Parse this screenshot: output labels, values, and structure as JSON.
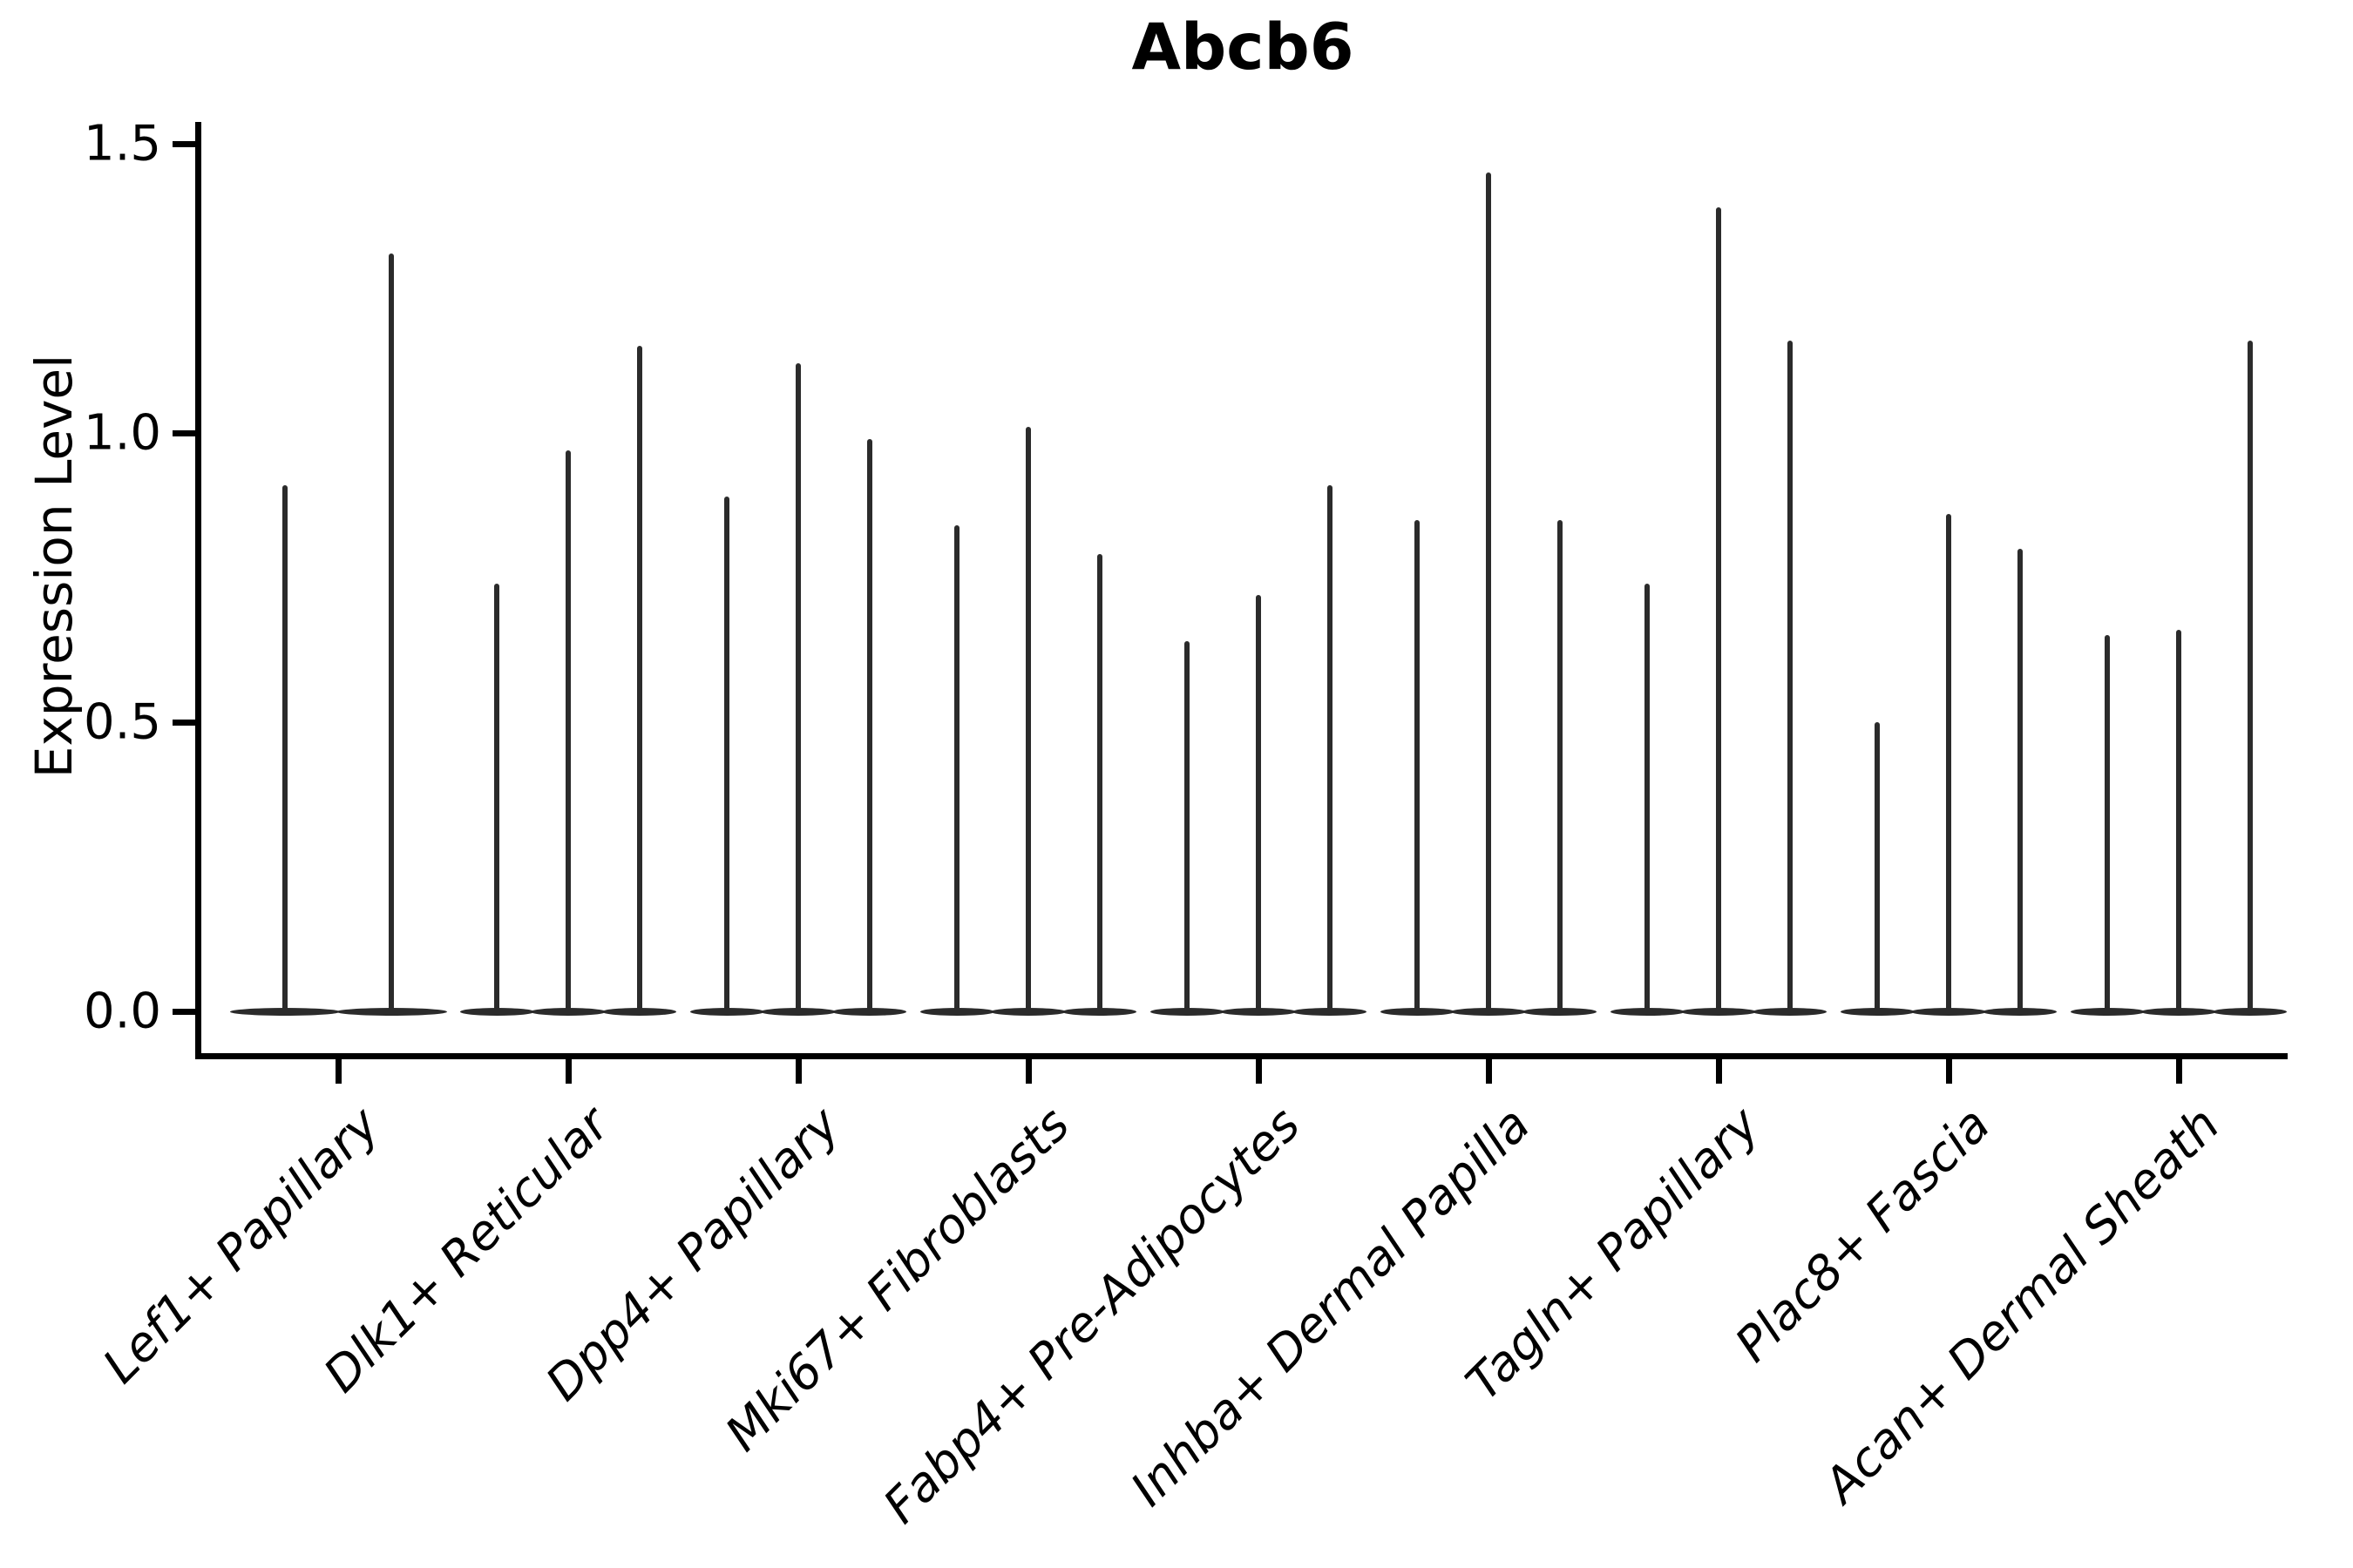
{
  "title": "Abcb6",
  "axes": {
    "ylabel": "Expression Level",
    "ytick_labels": [
      "0.0",
      "0.5",
      "1.0",
      "1.5"
    ]
  },
  "chart_data": {
    "type": "violin",
    "title": "Abcb6",
    "ylabel": "Expression Level",
    "yticks": [
      0.0,
      0.5,
      1.0,
      1.5
    ],
    "ytick_labels": [
      "0.0",
      "0.5",
      "1.0",
      "1.5"
    ],
    "ylim": [
      -0.07,
      1.61
    ],
    "grid": false,
    "legend_position": "none",
    "violin_color": "#2b2b2b",
    "description": "Violin plot of gene expression; each violin collapses to a flat base at 0 with a thin spike reaching its maximum expression value.",
    "categories": [
      "Lef1+ Papillary",
      "Dlk1+ Reticular",
      "Dpp4+ Papillary",
      "Mki67+ Fibroblasts",
      "Fabp4+ Pre-Adipocytes",
      "Inhba+ Dermal Papilla",
      "Tagln+ Papillary",
      "Plac8+ Fascia",
      "Acan+ Dermal Sheath"
    ],
    "series": [
      {
        "category": "Lef1+ Papillary",
        "violin_max_values": [
          0.91,
          1.31
        ]
      },
      {
        "category": "Dlk1+ Reticular",
        "violin_max_values": [
          0.74,
          0.97,
          1.15
        ]
      },
      {
        "category": "Dpp4+ Papillary",
        "violin_max_values": [
          0.89,
          1.12,
          0.99
        ]
      },
      {
        "category": "Mki67+ Fibroblasts",
        "violin_max_values": [
          0.84,
          1.01,
          0.79
        ]
      },
      {
        "category": "Fabp4+ Pre-Adipocytes",
        "violin_max_values": [
          0.64,
          0.72,
          0.91
        ]
      },
      {
        "category": "Inhba+ Dermal Papilla",
        "violin_max_values": [
          0.85,
          1.45,
          0.85
        ]
      },
      {
        "category": "Tagln+ Papillary",
        "violin_max_values": [
          0.74,
          1.39,
          1.16
        ]
      },
      {
        "category": "Plac8+ Fascia",
        "violin_max_values": [
          0.5,
          0.86,
          0.8
        ]
      },
      {
        "category": "Acan+ Dermal Sheath",
        "violin_max_values": [
          0.65,
          0.66,
          1.16
        ]
      }
    ]
  }
}
